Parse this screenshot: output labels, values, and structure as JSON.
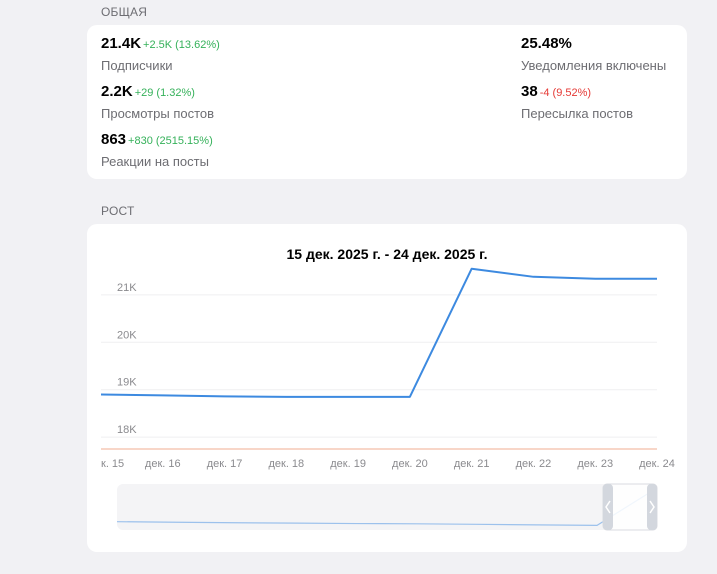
{
  "general": {
    "title": "ОБЩАЯ",
    "stats": [
      {
        "value": "21.4K",
        "delta": "+2.5K (13.62%)",
        "delta_sign": "pos",
        "label": "Подписчики"
      },
      {
        "value": "2.2K",
        "delta": "+29 (1.32%)",
        "delta_sign": "pos",
        "label": "Просмотры постов"
      },
      {
        "value": "863",
        "delta": "+830 (2515.15%)",
        "delta_sign": "pos",
        "label": "Реакции на посты"
      },
      {
        "value": "25.48%",
        "delta": "",
        "delta_sign": "",
        "label": "Уведомления включены"
      },
      {
        "value": "38",
        "delta": "-4 (9.52%)",
        "delta_sign": "neg",
        "label": "Пересылка постов"
      }
    ]
  },
  "growth": {
    "title": "РОСТ",
    "range_title": "15 дек. 2025 г. - 24 дек. 2025 г."
  },
  "colors": {
    "line": "#3d8ae0",
    "positive": "#35b15a",
    "negative": "#e53935",
    "baseline": "#f5c8b5"
  },
  "chart_data": {
    "type": "line",
    "title": "15 дек. 2025 г. - 24 дек. 2025 г.",
    "categories": [
      "к. 15",
      "дек. 16",
      "дек. 17",
      "дек. 18",
      "дек. 19",
      "дек. 20",
      "дек. 21",
      "дек. 22",
      "дек. 23",
      "дек. 24"
    ],
    "y_ticks": [
      "18K",
      "19K",
      "20K",
      "21K"
    ],
    "ylim": [
      17750,
      21650
    ],
    "series": [
      {
        "values": [
          18900,
          18880,
          18860,
          18850,
          18850,
          18850,
          21550,
          21380,
          21340,
          21340
        ]
      }
    ],
    "grid": true,
    "navigator": true
  }
}
